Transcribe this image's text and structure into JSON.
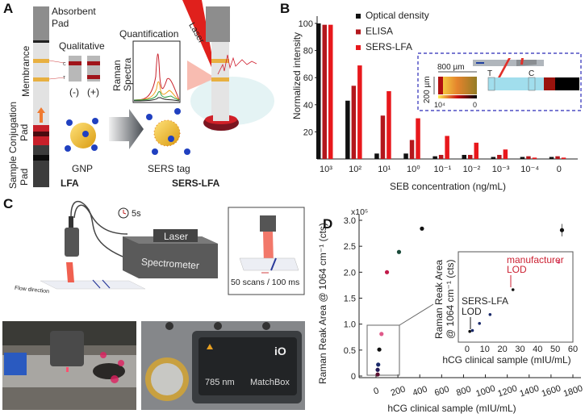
{
  "panels": {
    "a": {
      "letter": "A",
      "absorbent": [
        "Absorbent",
        "Pad"
      ],
      "membrane": "Membrance",
      "conjugation": [
        "Conjugation",
        "Pad"
      ],
      "sample": [
        "Sample",
        "Pad"
      ],
      "qualitative": "Qualitative",
      "neg": "(-)",
      "pos": "(+)",
      "line_c": "C",
      "line_t": "T",
      "quantification": "Quantification",
      "raman": [
        "Raman",
        "Spectra"
      ],
      "laser": "Laser",
      "gnp": "GNP",
      "sers_tag": "SERS tag",
      "lfa": "LFA",
      "sers_lfa": "SERS-LFA"
    },
    "b": {
      "letter": "B",
      "inset": {
        "width_label": "800 µm",
        "height_label": "200 µm",
        "scale_max": "10⁴",
        "scale_min": "0",
        "t": "T",
        "c": "C"
      }
    },
    "c": {
      "letter": "C",
      "time": "5s",
      "laser": "Laser",
      "spectrometer": "Spectrometer",
      "flow": "Flow direction",
      "scans": "50 scans / 100 ms",
      "wavelength": "785 nm",
      "brand": "MatchBox",
      "logo": "iO"
    },
    "d": {
      "letter": "D"
    }
  },
  "colors": {
    "od": "#111111",
    "elisa": "#b3171c",
    "sers": "#e8181c",
    "inset_border": "#2a2ab8"
  },
  "chart_data": [
    {
      "type": "bar",
      "title": "",
      "xlabel": "SEB concentration (ng/mL)",
      "ylabel": "Normalized intensity",
      "ylim": [
        0,
        105
      ],
      "yticks": [
        "20",
        "40",
        "60",
        "80",
        "100"
      ],
      "categories": [
        "10³",
        "10²",
        "10¹",
        "10⁰",
        "10⁻¹",
        "10⁻²",
        "10⁻³",
        "10⁻⁴",
        "0"
      ],
      "legend_position": "top-left",
      "series": [
        {
          "name": "Optical density",
          "values": [
            100,
            43,
            4,
            4,
            2,
            3,
            1.5,
            1.5,
            1.5
          ]
        },
        {
          "name": "ELISA",
          "values": [
            99,
            54,
            32,
            14,
            3,
            3,
            3,
            2,
            2
          ]
        },
        {
          "name": "SERS-LFA",
          "values": [
            99,
            69,
            50,
            30,
            17,
            12,
            7,
            1,
            1
          ]
        }
      ]
    },
    {
      "type": "scatter",
      "xlabel": "hCG clinical sample (mIU/mL)",
      "ylabel": "Raman Reak Area @ 1064 cm⁻¹ (cts)",
      "yscale_label": "x10⁵",
      "xlim": [
        -100,
        1800
      ],
      "ylim": [
        -0.1,
        3.1
      ],
      "xticks": [
        "0",
        "200",
        "400",
        "600",
        "800",
        "1000",
        "1200",
        "1400",
        "1600",
        "1800"
      ],
      "yticks": [
        "0",
        "0.5",
        "1.0",
        "1.5",
        "2.0",
        "2.5",
        "3.0"
      ],
      "points": [
        {
          "x": 15,
          "y": 0.03,
          "color": "#5a1030"
        },
        {
          "x": 15,
          "y": 0.12,
          "color": "#221a55"
        },
        {
          "x": 20,
          "y": 0.22,
          "color": "#1a2a6a"
        },
        {
          "x": 30,
          "y": 0.51,
          "color": "#111111"
        },
        {
          "x": 50,
          "y": 0.81,
          "color": "#e05a8a"
        },
        {
          "x": 100,
          "y": 2.0,
          "color": "#c21a4a"
        },
        {
          "x": 210,
          "y": 2.39,
          "color": "#1a4a3a"
        },
        {
          "x": 420,
          "y": 2.84,
          "color": "#111111"
        },
        {
          "x": 1700,
          "y": 2.81,
          "color": "#111111",
          "err": 0.12
        }
      ],
      "inset": {
        "xlabel": "hCG clinical sample (mIU/mL)",
        "ylabel": [
          "Raman Reak Area",
          "@ 1064 cm⁻¹ (cts)"
        ],
        "xticks": [
          "0",
          "10",
          "20",
          "30",
          "40",
          "50",
          "60"
        ],
        "xlim": [
          -5,
          60
        ],
        "points": [
          {
            "x": 1.5,
            "y": 0.03,
            "color": "#111111"
          },
          {
            "x": 3,
            "y": 0.04,
            "color": "#1a2a6a"
          },
          {
            "x": 7,
            "y": 0.12,
            "color": "#1a2a6a"
          },
          {
            "x": 13,
            "y": 0.22,
            "color": "#1a2a6a"
          },
          {
            "x": 26,
            "y": 0.5,
            "color": "#111111"
          },
          {
            "x": 52,
            "y": 0.81,
            "color": "#e05a8a"
          }
        ],
        "annotations": [
          {
            "text": [
              "SERS-LFA",
              "LOD"
            ],
            "color": "#111111"
          },
          {
            "text": [
              "manufacturer",
              "LOD"
            ],
            "color": "#cc2233"
          }
        ]
      }
    }
  ]
}
